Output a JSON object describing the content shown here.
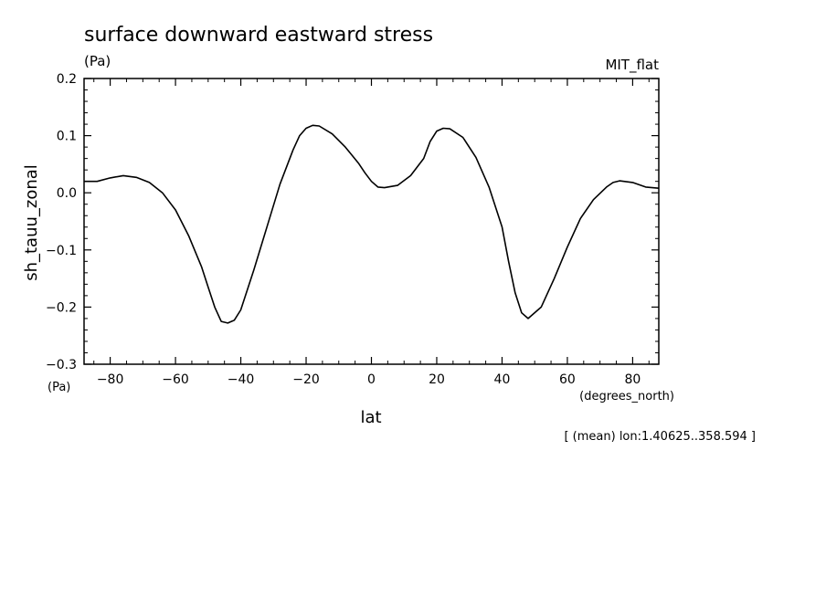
{
  "chart_data": {
    "type": "line",
    "title": "surface downward eastward stress",
    "units": "(Pa)",
    "model": "MIT_flat",
    "ylabel": "sh_tauu_zonal",
    "y_units": "(Pa)",
    "xlabel": "lat",
    "x_units": "(degrees_north)",
    "annotation": "[ (mean) lon:1.40625..358.594 ]",
    "xlim": [
      -88,
      88
    ],
    "ylim": [
      -0.3,
      0.2
    ],
    "x_ticks": [
      -80,
      -60,
      -40,
      -20,
      0,
      20,
      40,
      60,
      80
    ],
    "x_tick_labels": [
      "−80",
      "−60",
      "−40",
      "−20",
      "0",
      "20",
      "40",
      "60",
      "80"
    ],
    "y_ticks": [
      0.2,
      0.1,
      0.0,
      -0.1,
      -0.2,
      -0.3
    ],
    "y_tick_labels": [
      "0.2",
      "0.1",
      "0.0",
      "−0.1",
      "−0.2",
      "−0.3"
    ],
    "grid": false,
    "series": [
      {
        "x": [
          -88,
          -84,
          -80,
          -76,
          -72,
          -68,
          -64,
          -60,
          -56,
          -52,
          -50,
          -48,
          -46,
          -44,
          -42,
          -40,
          -36,
          -32,
          -28,
          -24,
          -22,
          -20,
          -18,
          -16,
          -12,
          -8,
          -4,
          -2,
          0,
          2,
          4,
          8,
          12,
          16,
          18,
          20,
          22,
          24,
          28,
          32,
          36,
          40,
          42,
          44,
          46,
          48,
          52,
          56,
          60,
          64,
          68,
          72,
          74,
          76,
          80,
          84,
          88
        ],
        "y": [
          0.02,
          0.02,
          0.026,
          0.03,
          0.027,
          0.018,
          0.0,
          -0.03,
          -0.075,
          -0.13,
          -0.165,
          -0.2,
          -0.225,
          -0.228,
          -0.223,
          -0.205,
          -0.135,
          -0.06,
          0.015,
          0.075,
          0.1,
          0.113,
          0.118,
          0.117,
          0.103,
          0.08,
          0.052,
          0.035,
          0.02,
          0.01,
          0.009,
          0.013,
          0.03,
          0.06,
          0.09,
          0.108,
          0.113,
          0.112,
          0.097,
          0.062,
          0.01,
          -0.06,
          -0.12,
          -0.175,
          -0.21,
          -0.22,
          -0.2,
          -0.15,
          -0.095,
          -0.045,
          -0.012,
          0.01,
          0.018,
          0.021,
          0.018,
          0.01,
          0.008
        ]
      }
    ]
  }
}
